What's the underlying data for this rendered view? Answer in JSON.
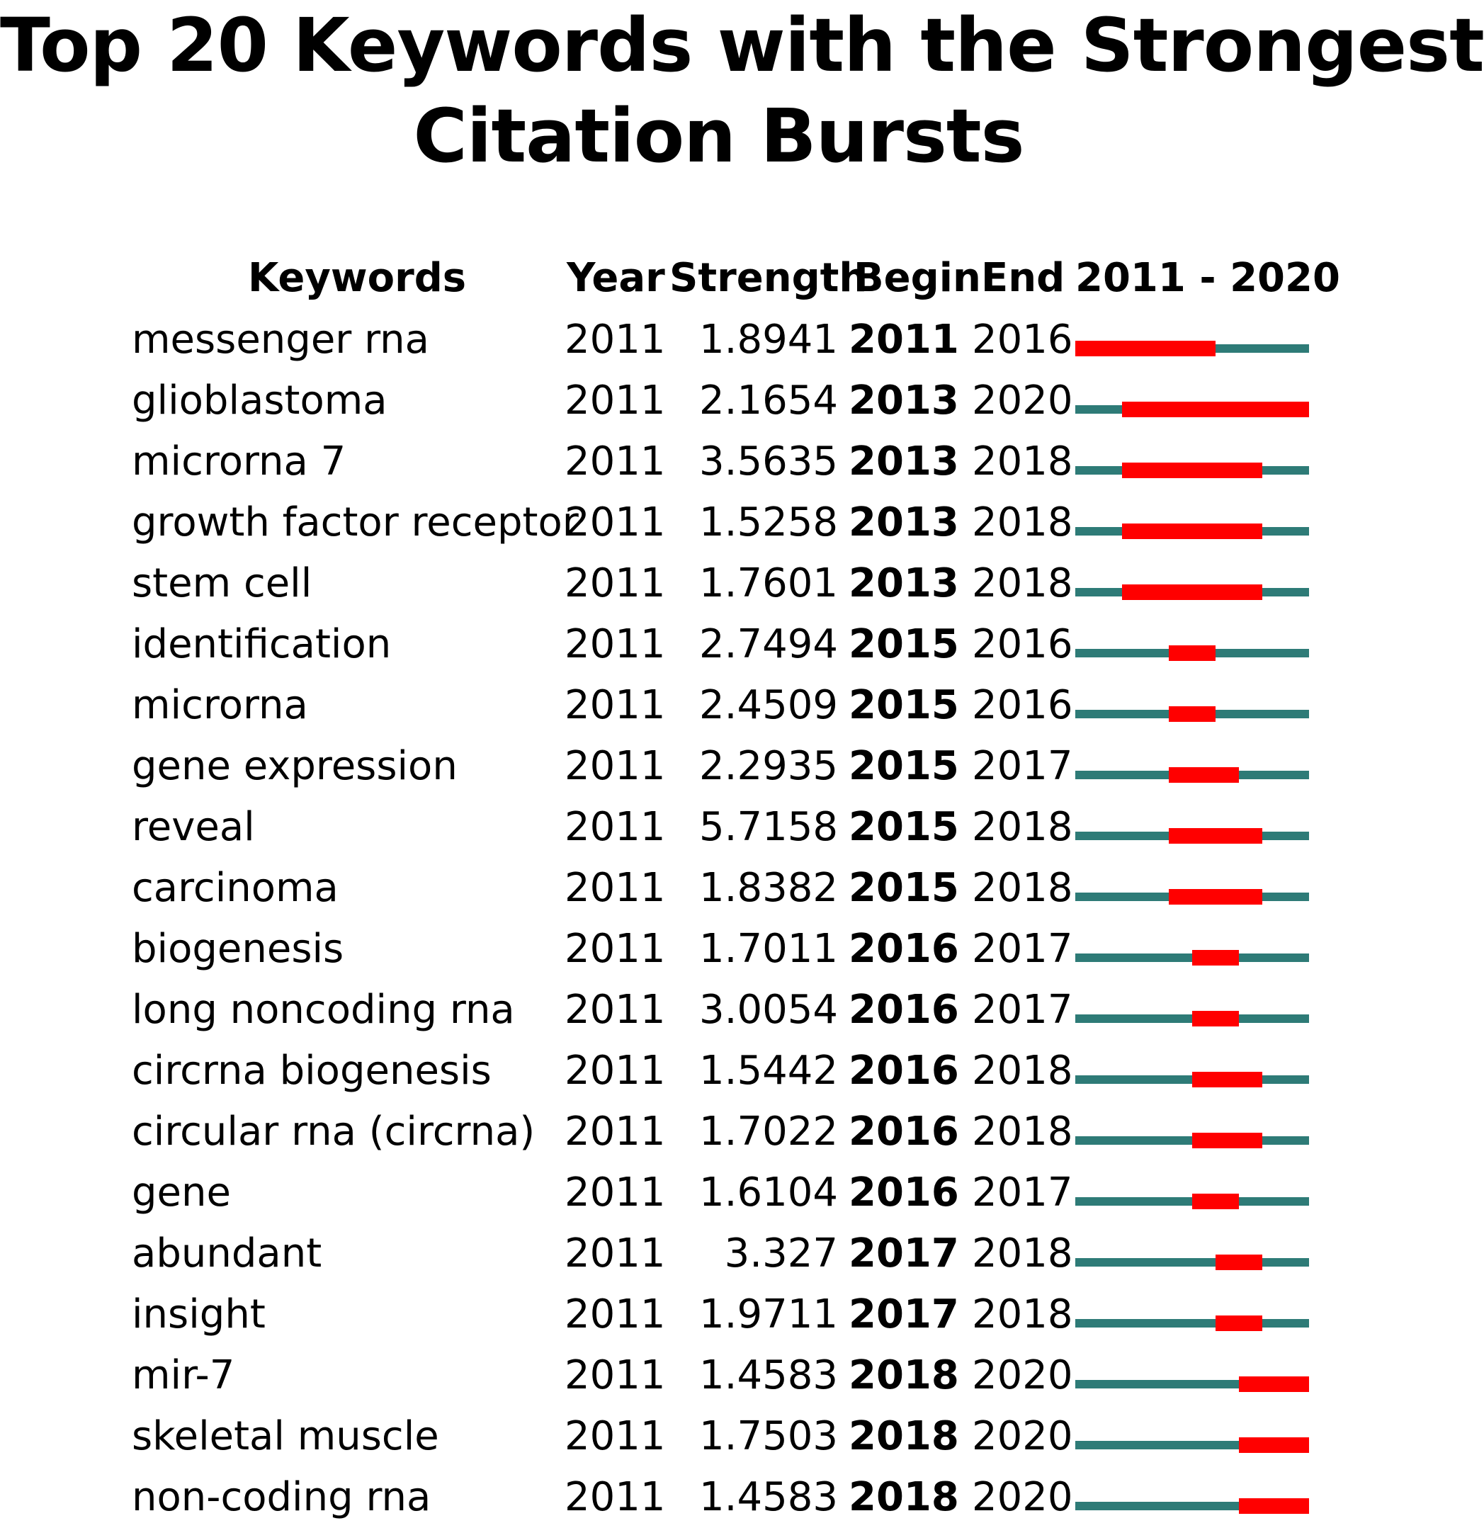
{
  "title_lines": [
    "Top 20 Keywords with the Strongest",
    "Citation Bursts"
  ],
  "headers": {
    "keywords": "Keywords",
    "year": "Year",
    "strength": "Strength",
    "begin": "Begin",
    "end": "End",
    "range": "2011 - 2020"
  },
  "colors": {
    "burst": "#ff0000",
    "baseline": "#2e7b77"
  },
  "chart_data": {
    "type": "table",
    "timeline_start": 2011,
    "timeline_end": 2020,
    "rows": [
      {
        "keyword": "messenger rna",
        "year": "2011",
        "strength": "1.8941",
        "begin": "2011",
        "end": "2016"
      },
      {
        "keyword": "glioblastoma",
        "year": "2011",
        "strength": "2.1654",
        "begin": "2013",
        "end": "2020"
      },
      {
        "keyword": "microrna 7",
        "year": "2011",
        "strength": "3.5635",
        "begin": "2013",
        "end": "2018"
      },
      {
        "keyword": "growth factor receptor",
        "year": "2011",
        "strength": "1.5258",
        "begin": "2013",
        "end": "2018"
      },
      {
        "keyword": "stem cell",
        "year": "2011",
        "strength": "1.7601",
        "begin": "2013",
        "end": "2018"
      },
      {
        "keyword": "identification",
        "year": "2011",
        "strength": "2.7494",
        "begin": "2015",
        "end": "2016"
      },
      {
        "keyword": "microrna",
        "year": "2011",
        "strength": "2.4509",
        "begin": "2015",
        "end": "2016"
      },
      {
        "keyword": "gene expression",
        "year": "2011",
        "strength": "2.2935",
        "begin": "2015",
        "end": "2017"
      },
      {
        "keyword": "reveal",
        "year": "2011",
        "strength": "5.7158",
        "begin": "2015",
        "end": "2018"
      },
      {
        "keyword": "carcinoma",
        "year": "2011",
        "strength": "1.8382",
        "begin": "2015",
        "end": "2018"
      },
      {
        "keyword": "biogenesis",
        "year": "2011",
        "strength": "1.7011",
        "begin": "2016",
        "end": "2017"
      },
      {
        "keyword": "long noncoding rna",
        "year": "2011",
        "strength": "3.0054",
        "begin": "2016",
        "end": "2017"
      },
      {
        "keyword": "circrna biogenesis",
        "year": "2011",
        "strength": "1.5442",
        "begin": "2016",
        "end": "2018"
      },
      {
        "keyword": "circular rna (circrna)",
        "year": "2011",
        "strength": "1.7022",
        "begin": "2016",
        "end": "2018"
      },
      {
        "keyword": "gene",
        "year": "2011",
        "strength": "1.6104",
        "begin": "2016",
        "end": "2017"
      },
      {
        "keyword": "abundant",
        "year": "2011",
        "strength": "3.327",
        "begin": "2017",
        "end": "2018"
      },
      {
        "keyword": "insight",
        "year": "2011",
        "strength": "1.9711",
        "begin": "2017",
        "end": "2018"
      },
      {
        "keyword": "mir-7",
        "year": "2011",
        "strength": "1.4583",
        "begin": "2018",
        "end": "2020"
      },
      {
        "keyword": "skeletal muscle",
        "year": "2011",
        "strength": "1.7503",
        "begin": "2018",
        "end": "2020"
      },
      {
        "keyword": "non-coding rna",
        "year": "2011",
        "strength": "1.4583",
        "begin": "2018",
        "end": "2020"
      }
    ]
  }
}
